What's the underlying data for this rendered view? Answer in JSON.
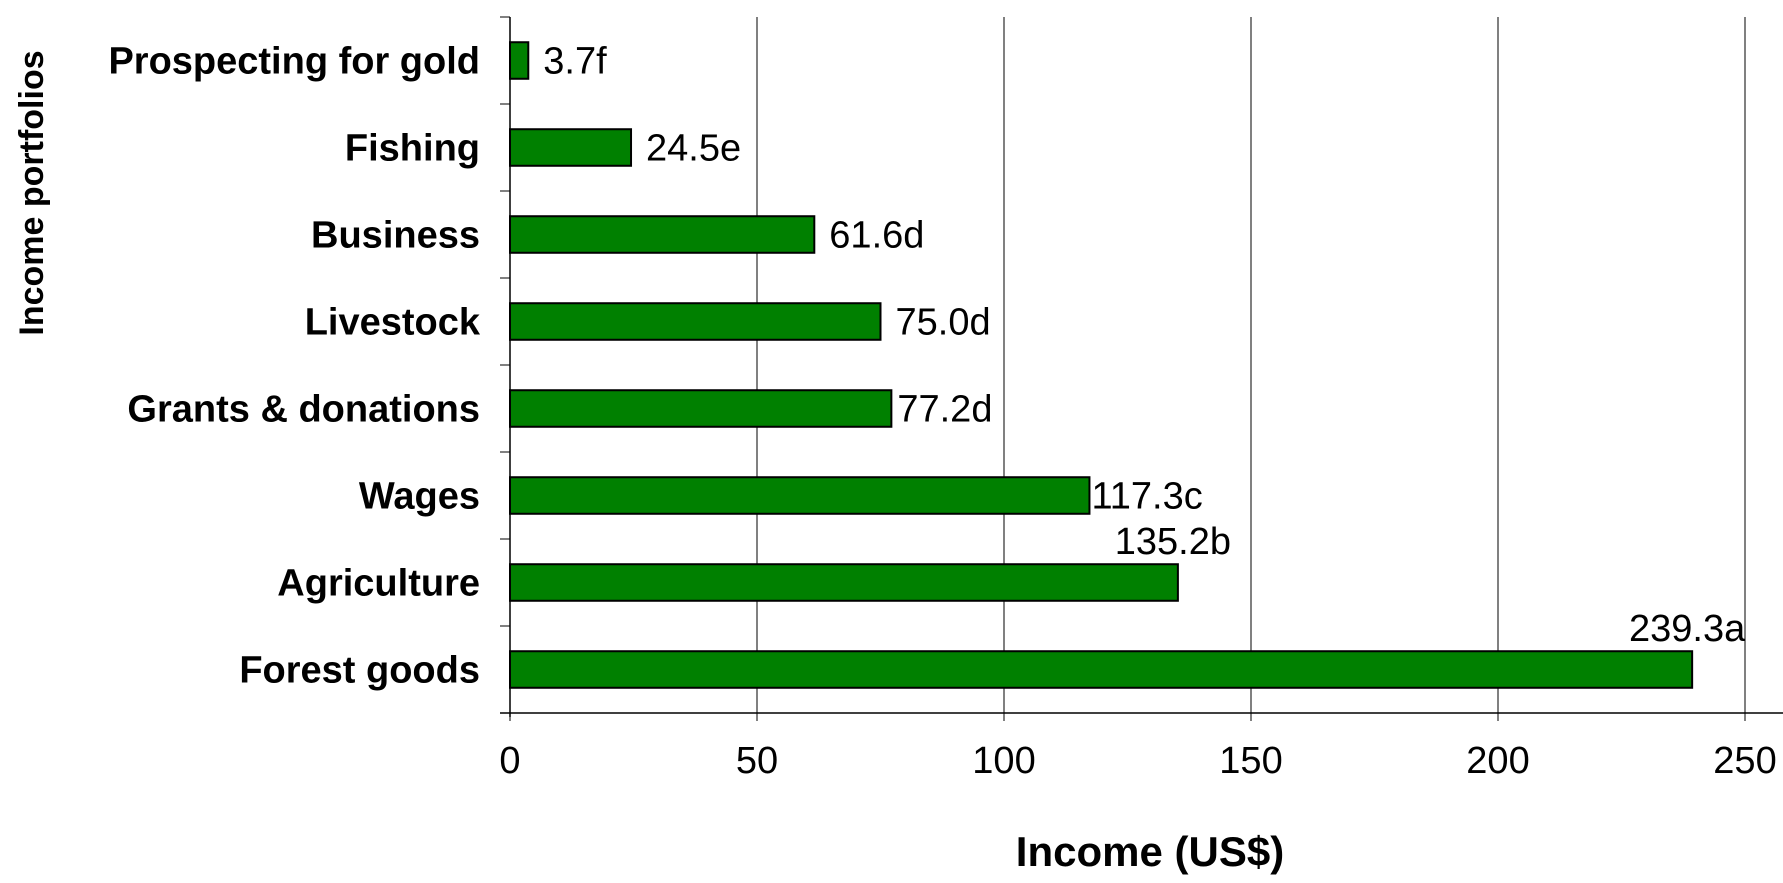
{
  "chart_data": {
    "type": "bar",
    "orientation": "horizontal",
    "title": "",
    "xlabel": "Income (US$)",
    "ylabel": "Income portfolios",
    "categories": [
      "Prospecting for gold",
      "Fishing",
      "Business",
      "Livestock",
      "Grants & donations",
      "Wages",
      "Agriculture",
      "Forest goods"
    ],
    "values": [
      3.7,
      24.5,
      61.6,
      75.0,
      77.2,
      117.3,
      135.2,
      239.3
    ],
    "data_labels": [
      "3.7f",
      "24.5e",
      "61.6d",
      "75.0d",
      "77.2d",
      "117.3c",
      "135.2b",
      "239.3a"
    ],
    "xlim": [
      0,
      250
    ],
    "xticks": [
      0,
      50,
      100,
      150,
      200,
      250
    ],
    "xtick_labels": [
      "0",
      "50",
      "100",
      "150",
      "200",
      "250"
    ],
    "grid": "vertical",
    "legend": "none",
    "bar_color": "#008000",
    "bar_edge_color": "#000000"
  }
}
